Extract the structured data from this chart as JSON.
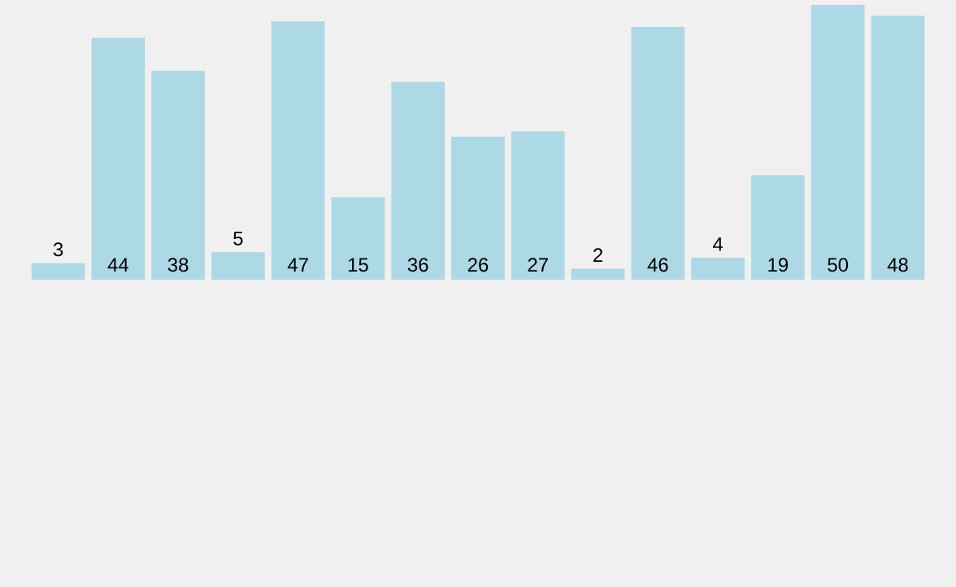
{
  "chart_data": {
    "type": "bar",
    "categories": [
      null,
      null,
      null,
      null,
      null,
      null,
      null,
      null,
      null,
      null,
      null,
      null,
      null,
      null,
      null
    ],
    "values": [
      3,
      44,
      38,
      5,
      47,
      15,
      36,
      26,
      27,
      2,
      46,
      4,
      19,
      50,
      48
    ],
    "color": "#add8e6",
    "data_labels": true
  }
}
